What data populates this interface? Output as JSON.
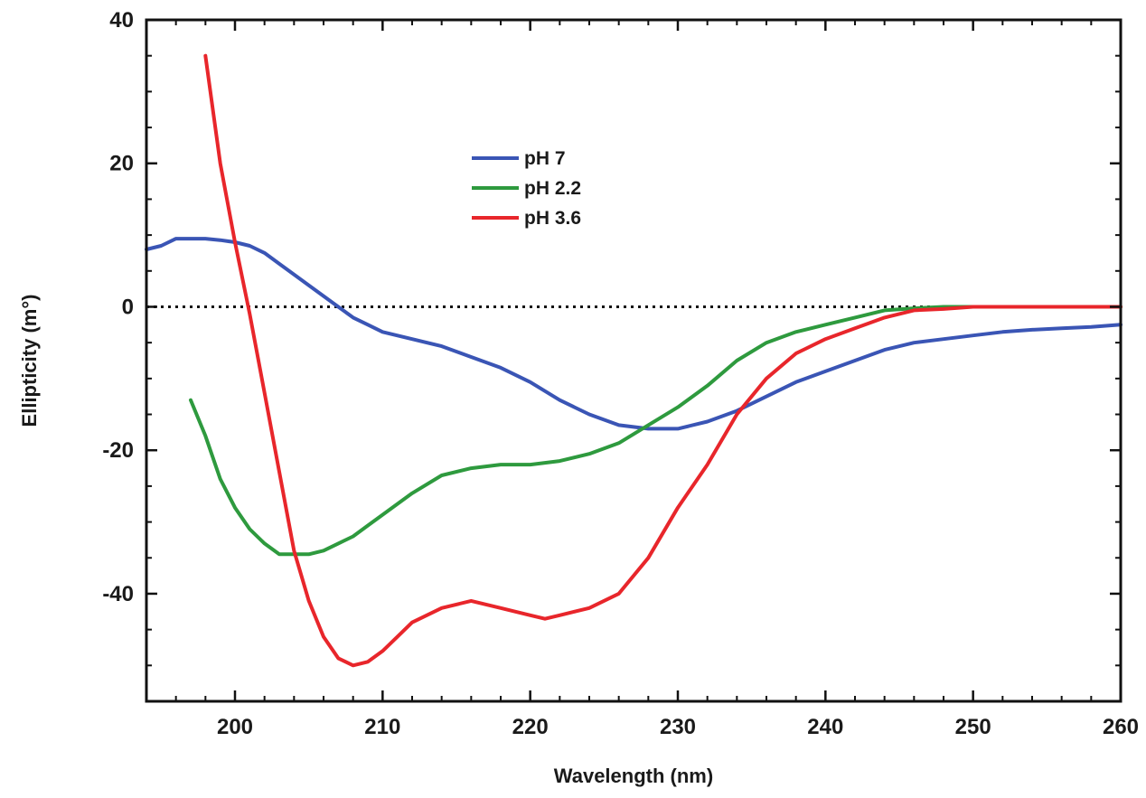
{
  "chart_data": {
    "type": "line",
    "title": "",
    "xlabel": "Wavelength (nm)",
    "ylabel": "Ellipticity (m°)",
    "xlim": [
      194,
      260
    ],
    "ylim": [
      -55,
      40
    ],
    "xticks": [
      200,
      210,
      220,
      230,
      240,
      250,
      260
    ],
    "yticks": [
      40,
      20,
      0,
      -20,
      -40
    ],
    "reference_line": {
      "y": 0,
      "style": "dotted"
    },
    "legend_position": "upper-center",
    "series": [
      {
        "name": "pH 7",
        "color": "#3a55b5",
        "x": [
          194,
          195,
          196,
          197,
          198,
          199,
          200,
          201,
          202,
          203,
          204,
          205,
          206,
          207,
          208,
          209,
          210,
          212,
          214,
          216,
          218,
          220,
          222,
          224,
          226,
          228,
          230,
          232,
          234,
          236,
          238,
          240,
          242,
          244,
          246,
          248,
          250,
          252,
          254,
          256,
          258,
          260
        ],
        "y": [
          8,
          8.5,
          9.5,
          9.5,
          9.5,
          9.3,
          9,
          8.5,
          7.5,
          6,
          4.5,
          3,
          1.5,
          0,
          -1.5,
          -2.5,
          -3.5,
          -4.5,
          -5.5,
          -7,
          -8.5,
          -10.5,
          -13,
          -15,
          -16.5,
          -17,
          -17,
          -16,
          -14.5,
          -12.5,
          -10.5,
          -9,
          -7.5,
          -6,
          -5,
          -4.5,
          -4,
          -3.5,
          -3.2,
          -3,
          -2.8,
          -2.5
        ]
      },
      {
        "name": "pH 2.2",
        "color": "#2e9a3e",
        "x": [
          197,
          198,
          199,
          200,
          201,
          202,
          203,
          204,
          205,
          206,
          207,
          208,
          209,
          210,
          212,
          214,
          216,
          218,
          220,
          222,
          224,
          226,
          228,
          230,
          232,
          234,
          236,
          238,
          240,
          242,
          244,
          246,
          248,
          250,
          252,
          254,
          256,
          258,
          260
        ],
        "y": [
          -13,
          -18,
          -24,
          -28,
          -31,
          -33,
          -34.5,
          -34.5,
          -34.5,
          -34,
          -33,
          -32,
          -30.5,
          -29,
          -26,
          -23.5,
          -22.5,
          -22,
          -22,
          -21.5,
          -20.5,
          -19,
          -16.5,
          -14,
          -11,
          -7.5,
          -5,
          -3.5,
          -2.5,
          -1.5,
          -0.5,
          -0.2,
          0,
          0,
          0,
          0,
          0,
          0,
          0
        ]
      },
      {
        "name": "pH 3.6",
        "color": "#e8262b",
        "x": [
          198,
          199,
          200,
          201,
          202,
          203,
          204,
          205,
          206,
          207,
          208,
          209,
          210,
          211,
          212,
          214,
          216,
          218,
          220,
          221,
          222,
          224,
          226,
          228,
          230,
          232,
          234,
          236,
          238,
          240,
          242,
          244,
          246,
          248,
          250,
          252,
          254,
          256,
          258,
          260
        ],
        "y": [
          35,
          20,
          9,
          -1,
          -12,
          -23,
          -34,
          -41,
          -46,
          -49,
          -50,
          -49.5,
          -48,
          -46,
          -44,
          -42,
          -41,
          -42,
          -43,
          -43.5,
          -43,
          -42,
          -40,
          -35,
          -28,
          -22,
          -15,
          -10,
          -6.5,
          -4.5,
          -3,
          -1.5,
          -0.5,
          -0.3,
          0,
          0,
          0,
          0,
          0,
          0
        ]
      }
    ]
  }
}
